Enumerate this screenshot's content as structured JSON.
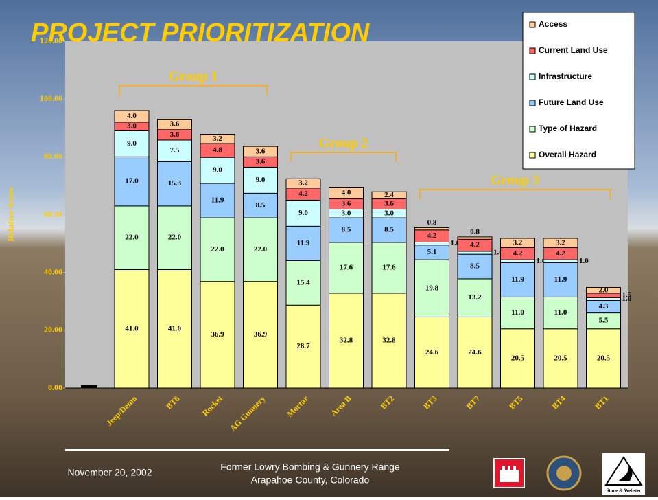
{
  "chart_data": {
    "type": "stacked_bar",
    "title": "PROJECT PRIORITIZATION",
    "y_label": "Relative Score",
    "categories": [
      "Jeep/Demo",
      "BT6",
      "Rocket",
      "AG Gunnery",
      "Mortar",
      "Area B",
      "BT2",
      "BT3",
      "BT7",
      "BT5",
      "BT4",
      "BT1"
    ],
    "series": [
      {
        "name": "Overall Hazard",
        "color": "#ffff99",
        "values": [
          41.0,
          41.0,
          36.9,
          36.9,
          28.7,
          32.8,
          32.8,
          24.6,
          24.6,
          20.5,
          20.5,
          20.5
        ],
        "value_labels": [
          "41.0",
          "41.0",
          "36.9",
          "36.9",
          "28.7",
          "32.8",
          "32.8",
          "24.6",
          "24.6",
          "20.5",
          "20.5",
          "20.5"
        ]
      },
      {
        "name": "Type of Hazard",
        "color": "#ccffcc",
        "values": [
          22.0,
          22.0,
          22.0,
          22.0,
          15.4,
          17.6,
          17.6,
          19.8,
          13.2,
          11.0,
          11.0,
          5.5
        ],
        "value_labels": [
          "22.0",
          "22.0",
          "22.0",
          "22.0",
          "15.4",
          "17.6",
          "17.6",
          "19.8",
          "13.2",
          "11.0",
          "11.0",
          "5.5"
        ]
      },
      {
        "name": "Future Land Use",
        "color": "#99ccff",
        "values": [
          17.0,
          15.3,
          11.9,
          8.5,
          11.9,
          8.5,
          8.5,
          5.1,
          8.5,
          11.9,
          11.9,
          4.3
        ],
        "value_labels": [
          "17.0",
          "15.3",
          "11.9",
          "8.5",
          "11.9",
          "8.5",
          "8.5",
          "5.1",
          "8.5",
          "11.9",
          "11.9",
          "4.3"
        ]
      },
      {
        "name": "Infrastructure",
        "color": "#ccffff",
        "values": [
          9.0,
          7.5,
          9.0,
          9.0,
          9.0,
          3.0,
          3.0,
          1.0,
          1.0,
          1.0,
          1.0,
          1.0
        ],
        "value_labels": [
          "9.0",
          "7.5",
          "9.0",
          "9.0",
          "9.0",
          "3.0",
          "3.0",
          "1.0",
          "1.0",
          "1.0",
          "1.0",
          "1.0"
        ]
      },
      {
        "name": "Current Land Use",
        "color": "#ff6666",
        "values": [
          3.0,
          3.6,
          4.8,
          3.6,
          4.2,
          3.6,
          3.6,
          4.2,
          4.2,
          4.2,
          4.2,
          1.5
        ],
        "value_labels": [
          "3.0",
          "3.6",
          "4.8",
          "3.6",
          "4.2",
          "3.6",
          "3.6",
          "4.2",
          "4.2",
          "4.2",
          "4.2",
          "1.5"
        ]
      },
      {
        "name": "Access",
        "color": "#ffcc99",
        "values": [
          4.0,
          3.6,
          3.2,
          3.6,
          3.2,
          4.0,
          2.4,
          0.8,
          0.8,
          3.2,
          3.2,
          2.0
        ],
        "value_labels": [
          "4.0",
          "3.6",
          "3.2",
          "3.6",
          "3.2",
          "4.0",
          "2.4",
          "0.8",
          "0.8",
          "3.2",
          "3.2",
          "2.0"
        ]
      }
    ],
    "ylim": [
      0,
      120
    ],
    "yticks": [
      {
        "value": 0,
        "label": "0.00"
      },
      {
        "value": 20,
        "label": "20.00"
      },
      {
        "value": 40,
        "label": "40.00"
      },
      {
        "value": 60,
        "label": "60.00"
      },
      {
        "value": 80,
        "label": "80.00"
      },
      {
        "value": 100,
        "label": "100.00"
      },
      {
        "value": 120,
        "label": "120.00"
      }
    ],
    "grid": false,
    "legend": "top-right",
    "annotations": [
      "Group 1",
      "Group 2",
      "Group 3"
    ]
  },
  "footer": {
    "date": "November 20, 2002",
    "line1": "Former Lowry Bombing & Gunnery Range",
    "line2": "Arapahoe County, Colorado",
    "logo_text": "Stone & Webster"
  }
}
